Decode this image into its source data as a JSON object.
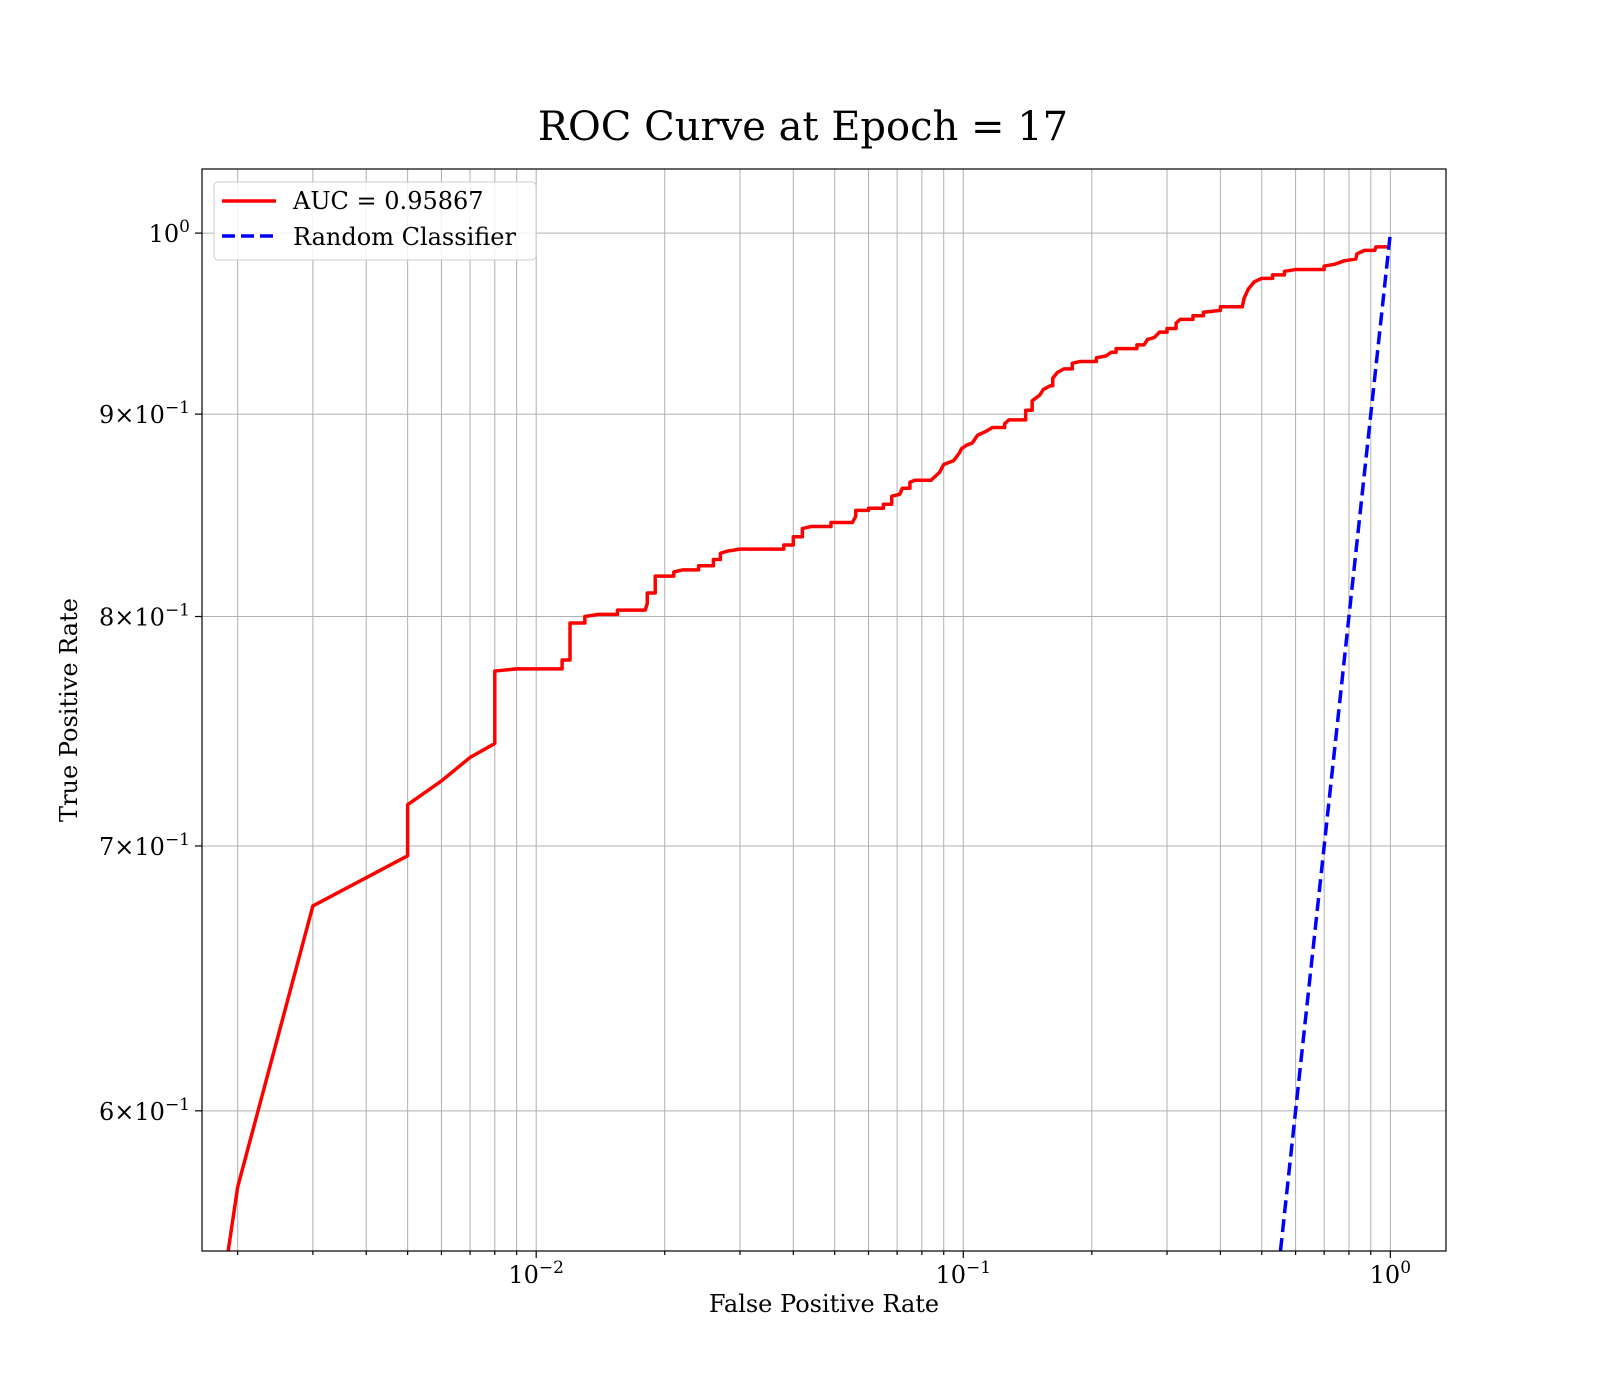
{
  "chart_data": {
    "type": "line",
    "title": "ROC Curve at Epoch = 17",
    "xlabel": "False Positive Rate",
    "ylabel": "True Positive Rate",
    "xscale": "log",
    "yscale": "log",
    "xlim": [
      0.00165,
      1.35
    ],
    "ylim": [
      0.553,
      1.038
    ],
    "grid": "both (major and minor)",
    "legend_position": "top-left",
    "x_ticks": [
      {
        "value": 0.01,
        "base": "10",
        "exp": "−2"
      },
      {
        "value": 0.1,
        "base": "10",
        "exp": "−1"
      },
      {
        "value": 1,
        "base": "10",
        "exp": "0"
      }
    ],
    "y_ticks": [
      {
        "value": 0.6,
        "mant": "6",
        "base": "10",
        "exp": "−1"
      },
      {
        "value": 0.7,
        "mant": "7",
        "base": "10",
        "exp": "−1"
      },
      {
        "value": 0.8,
        "mant": "8",
        "base": "10",
        "exp": "−1"
      },
      {
        "value": 0.9,
        "mant": "9",
        "base": "10",
        "exp": "−1"
      },
      {
        "value": 1.0,
        "mant": "",
        "base": "10",
        "exp": "0"
      }
    ],
    "series": [
      {
        "name": "AUC = 0.95867",
        "color": "#ff0000",
        "style": "solid",
        "points": [
          [
            0.0019,
            0.553
          ],
          [
            0.002,
            0.574
          ],
          [
            0.003,
            0.676
          ],
          [
            0.005,
            0.696
          ],
          [
            0.005,
            0.717
          ],
          [
            0.006,
            0.727
          ],
          [
            0.007,
            0.737
          ],
          [
            0.008,
            0.743
          ],
          [
            0.008,
            0.775
          ],
          [
            0.009,
            0.776
          ],
          [
            0.0115,
            0.776
          ],
          [
            0.0115,
            0.78
          ],
          [
            0.012,
            0.78
          ],
          [
            0.012,
            0.797
          ],
          [
            0.013,
            0.797
          ],
          [
            0.013,
            0.8
          ],
          [
            0.014,
            0.801
          ],
          [
            0.0155,
            0.801
          ],
          [
            0.0155,
            0.803
          ],
          [
            0.018,
            0.803
          ],
          [
            0.0182,
            0.806
          ],
          [
            0.0182,
            0.811
          ],
          [
            0.019,
            0.811
          ],
          [
            0.019,
            0.819
          ],
          [
            0.021,
            0.819
          ],
          [
            0.021,
            0.821
          ],
          [
            0.022,
            0.822
          ],
          [
            0.024,
            0.822
          ],
          [
            0.024,
            0.824
          ],
          [
            0.026,
            0.824
          ],
          [
            0.026,
            0.827
          ],
          [
            0.027,
            0.827
          ],
          [
            0.027,
            0.83
          ],
          [
            0.028,
            0.831
          ],
          [
            0.03,
            0.832
          ],
          [
            0.038,
            0.832
          ],
          [
            0.038,
            0.834
          ],
          [
            0.04,
            0.834
          ],
          [
            0.04,
            0.838
          ],
          [
            0.042,
            0.838
          ],
          [
            0.042,
            0.842
          ],
          [
            0.044,
            0.843
          ],
          [
            0.049,
            0.843
          ],
          [
            0.049,
            0.845
          ],
          [
            0.055,
            0.845
          ],
          [
            0.056,
            0.848
          ],
          [
            0.056,
            0.851
          ],
          [
            0.06,
            0.851
          ],
          [
            0.06,
            0.852
          ],
          [
            0.065,
            0.852
          ],
          [
            0.065,
            0.854
          ],
          [
            0.068,
            0.854
          ],
          [
            0.068,
            0.858
          ],
          [
            0.071,
            0.859
          ],
          [
            0.072,
            0.862
          ],
          [
            0.075,
            0.862
          ],
          [
            0.075,
            0.865
          ],
          [
            0.077,
            0.866
          ],
          [
            0.084,
            0.866
          ],
          [
            0.088,
            0.87
          ],
          [
            0.09,
            0.874
          ],
          [
            0.095,
            0.876
          ],
          [
            0.098,
            0.88
          ],
          [
            0.099,
            0.882
          ],
          [
            0.102,
            0.884
          ],
          [
            0.105,
            0.885
          ],
          [
            0.108,
            0.889
          ],
          [
            0.113,
            0.891
          ],
          [
            0.117,
            0.893
          ],
          [
            0.125,
            0.893
          ],
          [
            0.125,
            0.895
          ],
          [
            0.128,
            0.897
          ],
          [
            0.14,
            0.897
          ],
          [
            0.14,
            0.902
          ],
          [
            0.145,
            0.902
          ],
          [
            0.145,
            0.907
          ],
          [
            0.151,
            0.91
          ],
          [
            0.154,
            0.913
          ],
          [
            0.16,
            0.915
          ],
          [
            0.162,
            0.915
          ],
          [
            0.162,
            0.919
          ],
          [
            0.166,
            0.922
          ],
          [
            0.172,
            0.924
          ],
          [
            0.18,
            0.924
          ],
          [
            0.18,
            0.927
          ],
          [
            0.188,
            0.928
          ],
          [
            0.205,
            0.928
          ],
          [
            0.205,
            0.93
          ],
          [
            0.216,
            0.931
          ],
          [
            0.222,
            0.933
          ],
          [
            0.228,
            0.933
          ],
          [
            0.228,
            0.935
          ],
          [
            0.255,
            0.935
          ],
          [
            0.255,
            0.937
          ],
          [
            0.265,
            0.937
          ],
          [
            0.27,
            0.94
          ],
          [
            0.28,
            0.941
          ],
          [
            0.288,
            0.944
          ],
          [
            0.3,
            0.944
          ],
          [
            0.3,
            0.946
          ],
          [
            0.315,
            0.946
          ],
          [
            0.315,
            0.949
          ],
          [
            0.322,
            0.951
          ],
          [
            0.345,
            0.951
          ],
          [
            0.345,
            0.953
          ],
          [
            0.365,
            0.953
          ],
          [
            0.365,
            0.955
          ],
          [
            0.4,
            0.956
          ],
          [
            0.4,
            0.958
          ],
          [
            0.45,
            0.958
          ],
          [
            0.455,
            0.963
          ],
          [
            0.465,
            0.968
          ],
          [
            0.48,
            0.972
          ],
          [
            0.5,
            0.974
          ],
          [
            0.53,
            0.974
          ],
          [
            0.53,
            0.976
          ],
          [
            0.565,
            0.976
          ],
          [
            0.565,
            0.978
          ],
          [
            0.6,
            0.979
          ],
          [
            0.65,
            0.979
          ],
          [
            0.7,
            0.979
          ],
          [
            0.7,
            0.981
          ],
          [
            0.74,
            0.982
          ],
          [
            0.78,
            0.984
          ],
          [
            0.83,
            0.985
          ],
          [
            0.835,
            0.988
          ],
          [
            0.87,
            0.99
          ],
          [
            0.92,
            0.99
          ],
          [
            0.925,
            0.992
          ],
          [
            1.0,
            0.992
          ]
        ]
      },
      {
        "name": "Random Classifier",
        "color": "#0000ff",
        "style": "dashed",
        "points": [
          [
            0.553,
            0.553
          ],
          [
            0.6,
            0.6
          ],
          [
            0.7,
            0.7
          ],
          [
            0.8,
            0.8
          ],
          [
            0.9,
            0.9
          ],
          [
            1.0,
            1.0
          ]
        ]
      }
    ]
  }
}
